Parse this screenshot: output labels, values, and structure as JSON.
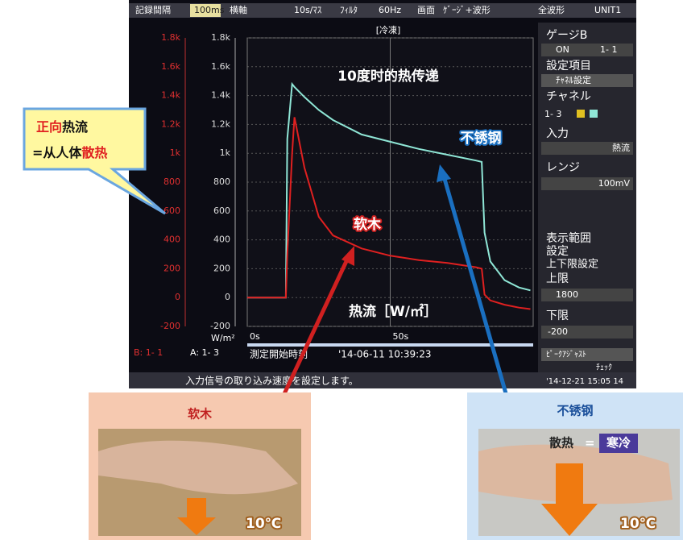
{
  "top_bar": [
    "記録間隔",
    "100ms",
    "横軸",
    "10s/ﾏｽ",
    "ﾌｨﾙﾀ",
    "60Hz",
    "画面",
    "ｹﾞｰｼﾞ+波形",
    "全波形",
    "UNIT1"
  ],
  "side_panel": [
    "ゲージB",
    "ON",
    "1- 1",
    "設定項目",
    "ﾁｬﾈﾙ設定",
    "チャネル",
    "1- 3",
    "入力",
    "熱流",
    "レンジ",
    "100mV",
    "表示範囲",
    "設定",
    "上下限設定",
    "上限",
    "1800",
    "下限",
    "-200",
    "ﾋﾟｰｸｱｼﾞｬｽﾄ",
    "ﾁｪｯｸ"
  ],
  "status": {
    "unit": "W/m²",
    "channel_b": "B:  1- 1",
    "channel_a": "A:  1- 3",
    "start_label": "測定開始時刻",
    "start_time": "'14-06-11 10:39:23",
    "message": "入力信号の取り込み速度を設定します。",
    "clock": "'14-12-21 15:05 14"
  },
  "chart_data": {
    "type": "line",
    "header": "[冷凍]",
    "title": "10度时的热传递",
    "y_label": "热流［W/㎡］",
    "x": [
      0,
      5,
      10,
      13.5,
      14,
      15.7,
      16.5,
      20,
      25,
      30,
      40,
      50,
      60,
      70,
      80,
      82,
      83,
      85,
      90,
      95,
      99
    ],
    "series": [
      {
        "name": "不锈钢",
        "color": "#8fe6d6",
        "values": [
          0,
          0,
          0,
          0,
          1100,
          1480,
          1460,
          1390,
          1300,
          1230,
          1130,
          1080,
          1030,
          990,
          950,
          940,
          450,
          250,
          120,
          70,
          50
        ]
      },
      {
        "name": "软木",
        "color": "#e02020",
        "values": [
          0,
          0,
          0,
          0,
          300,
          1000,
          1250,
          900,
          560,
          430,
          340,
          290,
          260,
          240,
          210,
          200,
          20,
          -20,
          -50,
          -70,
          -80
        ]
      }
    ],
    "xlim": [
      0,
      100
    ],
    "xticks": [
      {
        "value": 0,
        "label": "0s"
      },
      {
        "value": 50,
        "label": "50s"
      }
    ],
    "ylim": [
      -200,
      1800
    ],
    "yticks": [
      {
        "value": 1800,
        "label": "1.8k"
      },
      {
        "value": 1600,
        "label": "1.6k"
      },
      {
        "value": 1400,
        "label": "1.4k"
      },
      {
        "value": 1200,
        "label": "1.2k"
      },
      {
        "value": 1000,
        "label": "1k"
      },
      800,
      600,
      400,
      200,
      0,
      -200
    ],
    "grid": true
  },
  "callout": {
    "part1": "正向",
    "part2": "热流",
    "part3": "=从人体",
    "part4": "散热"
  },
  "photos": {
    "left_title": "软木",
    "left_temp": "10℃",
    "right_title": "不锈钢",
    "right_a": "散热",
    "right_eq": "=",
    "right_b": "寒冷",
    "right_temp": "10℃"
  }
}
